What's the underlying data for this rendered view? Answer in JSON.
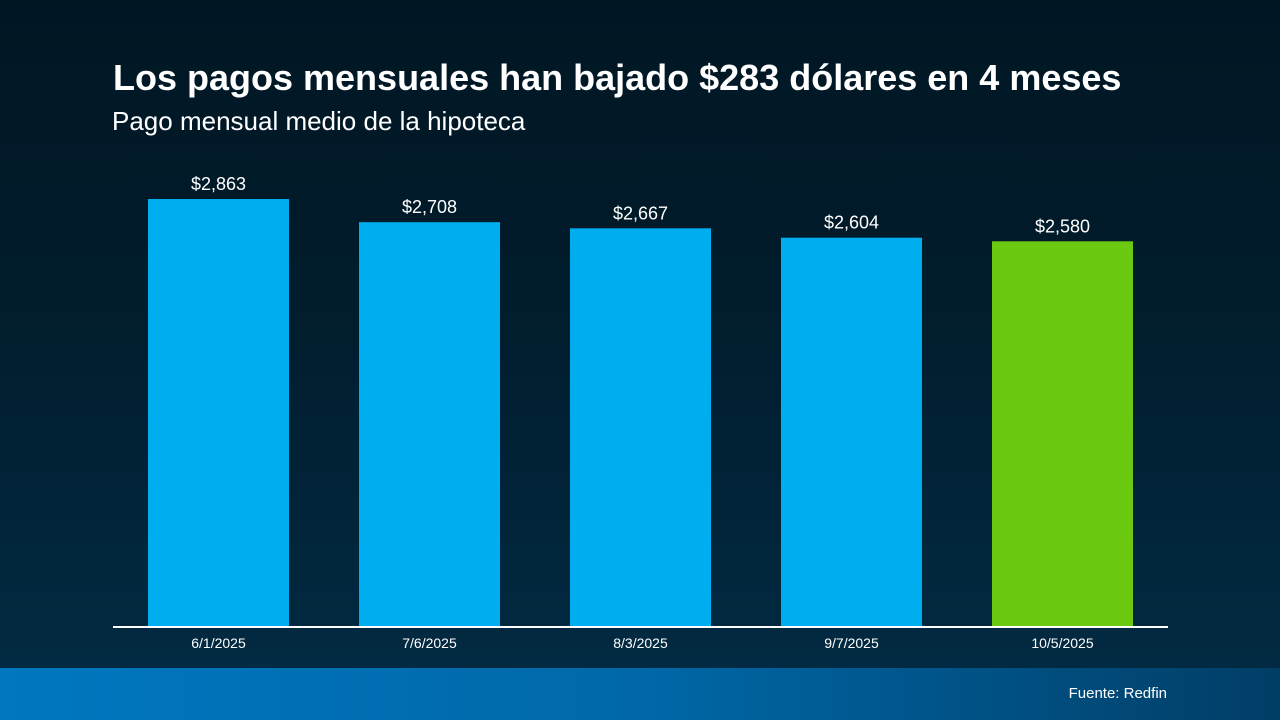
{
  "chart_data": {
    "type": "bar",
    "title": "Los pagos mensuales han bajado $283 dólares en 4 meses",
    "subtitle": "Pago mensual medio de la hipoteca",
    "categories": [
      "6/1/2025",
      "7/6/2025",
      "8/3/2025",
      "9/7/2025",
      "10/5/2025"
    ],
    "values": [
      2863,
      2708,
      2667,
      2604,
      2580
    ],
    "value_labels": [
      "$2,863",
      "$2,708",
      "$2,667",
      "$2,604",
      "$2,580"
    ],
    "bar_colors": [
      "#00adef",
      "#00adef",
      "#00adef",
      "#00adef",
      "#6cc911"
    ],
    "xlabel": "",
    "ylabel": "",
    "ylim": [
      0,
      2863
    ],
    "grid": false,
    "legend": "none"
  },
  "footer": {
    "source": "Fuente: Redfin"
  }
}
